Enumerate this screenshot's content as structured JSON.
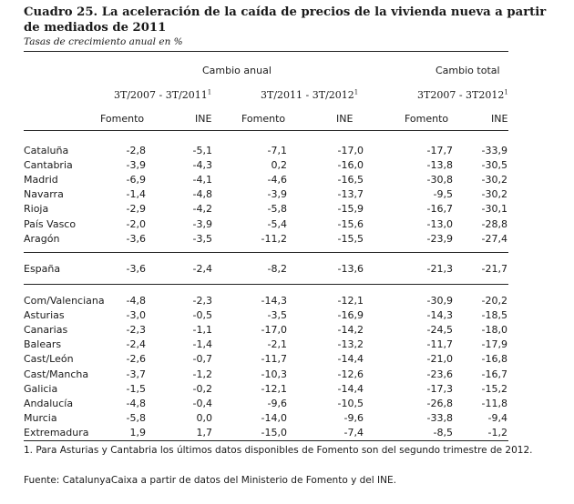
{
  "title": "Cuadro 25. La aceleración de la caída de precios de la vivienda nueva a partir de mediados de 2011",
  "subtitle": "Tasas de crecimiento anual en %",
  "headers": {
    "annual_change": "Cambio anual",
    "total_change": "Cambio total",
    "period_1": "3T/2007 - 3T/2011",
    "period_1_sup": "1",
    "period_2": "3T/2011 - 3T/2012",
    "period_2_sup": "1",
    "period_3": "3T2007 - 3T2012",
    "period_3_sup": "1",
    "col_fomento": "Fomento",
    "col_ine": "INE"
  },
  "groups": [
    {
      "rows": [
        {
          "region": "Cataluña",
          "values": [
            "-2,8",
            "-5,1",
            "-7,1",
            "-17,0",
            "-17,7",
            "-33,9"
          ]
        },
        {
          "region": "Cantabria",
          "values": [
            "-3,9",
            "-4,3",
            "0,2",
            "-16,0",
            "-13,8",
            "-30,5"
          ]
        },
        {
          "region": "Madrid",
          "values": [
            "-6,9",
            "-4,1",
            "-4,6",
            "-16,5",
            "-30,8",
            "-30,2"
          ]
        },
        {
          "region": "Navarra",
          "values": [
            "-1,4",
            "-4,8",
            "-3,9",
            "-13,7",
            "-9,5",
            "-30,2"
          ]
        },
        {
          "region": "Rioja",
          "values": [
            "-2,9",
            "-4,2",
            "-5,8",
            "-15,9",
            "-16,7",
            "-30,1"
          ]
        },
        {
          "region": "País Vasco",
          "values": [
            "-2,0",
            "-3,9",
            "-5,4",
            "-15,6",
            "-13,0",
            "-28,8"
          ]
        },
        {
          "region": "Aragón",
          "values": [
            "-3,6",
            "-3,5",
            "-11,2",
            "-15,5",
            "-23,9",
            "-27,4"
          ]
        }
      ]
    },
    {
      "rows": [
        {
          "region": "España",
          "values": [
            "-3,6",
            "-2,4",
            "-8,2",
            "-13,6",
            "-21,3",
            "-21,7"
          ]
        }
      ]
    },
    {
      "rows": [
        {
          "region": "Com/Valenciana",
          "values": [
            "-4,8",
            "-2,3",
            "-14,3",
            "-12,1",
            "-30,9",
            "-20,2"
          ]
        },
        {
          "region": "Asturias",
          "values": [
            "-3,0",
            "-0,5",
            "-3,5",
            "-16,9",
            "-14,3",
            "-18,5"
          ]
        },
        {
          "region": "Canarias",
          "values": [
            "-2,3",
            "-1,1",
            "-17,0",
            "-14,2",
            "-24,5",
            "-18,0"
          ]
        },
        {
          "region": "Balears",
          "values": [
            "-2,4",
            "-1,4",
            "-2,1",
            "-13,2",
            "-11,7",
            "-17,9"
          ]
        },
        {
          "region": "Cast/León",
          "values": [
            "-2,6",
            "-0,7",
            "-11,7",
            "-14,4",
            "-21,0",
            "-16,8"
          ]
        },
        {
          "region": "Cast/Mancha",
          "values": [
            "-3,7",
            "-1,2",
            "-10,3",
            "-12,6",
            "-23,6",
            "-16,7"
          ]
        },
        {
          "region": "Galicia",
          "values": [
            "-1,5",
            "-0,2",
            "-12,1",
            "-14,4",
            "-17,3",
            "-15,2"
          ]
        },
        {
          "region": "Andalucía",
          "values": [
            "-4,8",
            "-0,4",
            "-9,6",
            "-10,5",
            "-26,8",
            "-11,8"
          ]
        },
        {
          "region": "Murcia",
          "values": [
            "-5,8",
            "0,0",
            "-14,0",
            "-9,6",
            "-33,8",
            "-9,4"
          ]
        },
        {
          "region": "Extremadura",
          "values": [
            "1,9",
            "1,7",
            "-15,0",
            "-7,4",
            "-8,5",
            "-1,2"
          ]
        }
      ]
    }
  ],
  "footnote": "1. Para Asturias y Cantabria los últimos datos disponibles de Fomento son del segundo trimestre de 2012.",
  "source": "Fuente: CatalunyaCaixa a partir de datos del Ministerio de Fomento y del INE."
}
